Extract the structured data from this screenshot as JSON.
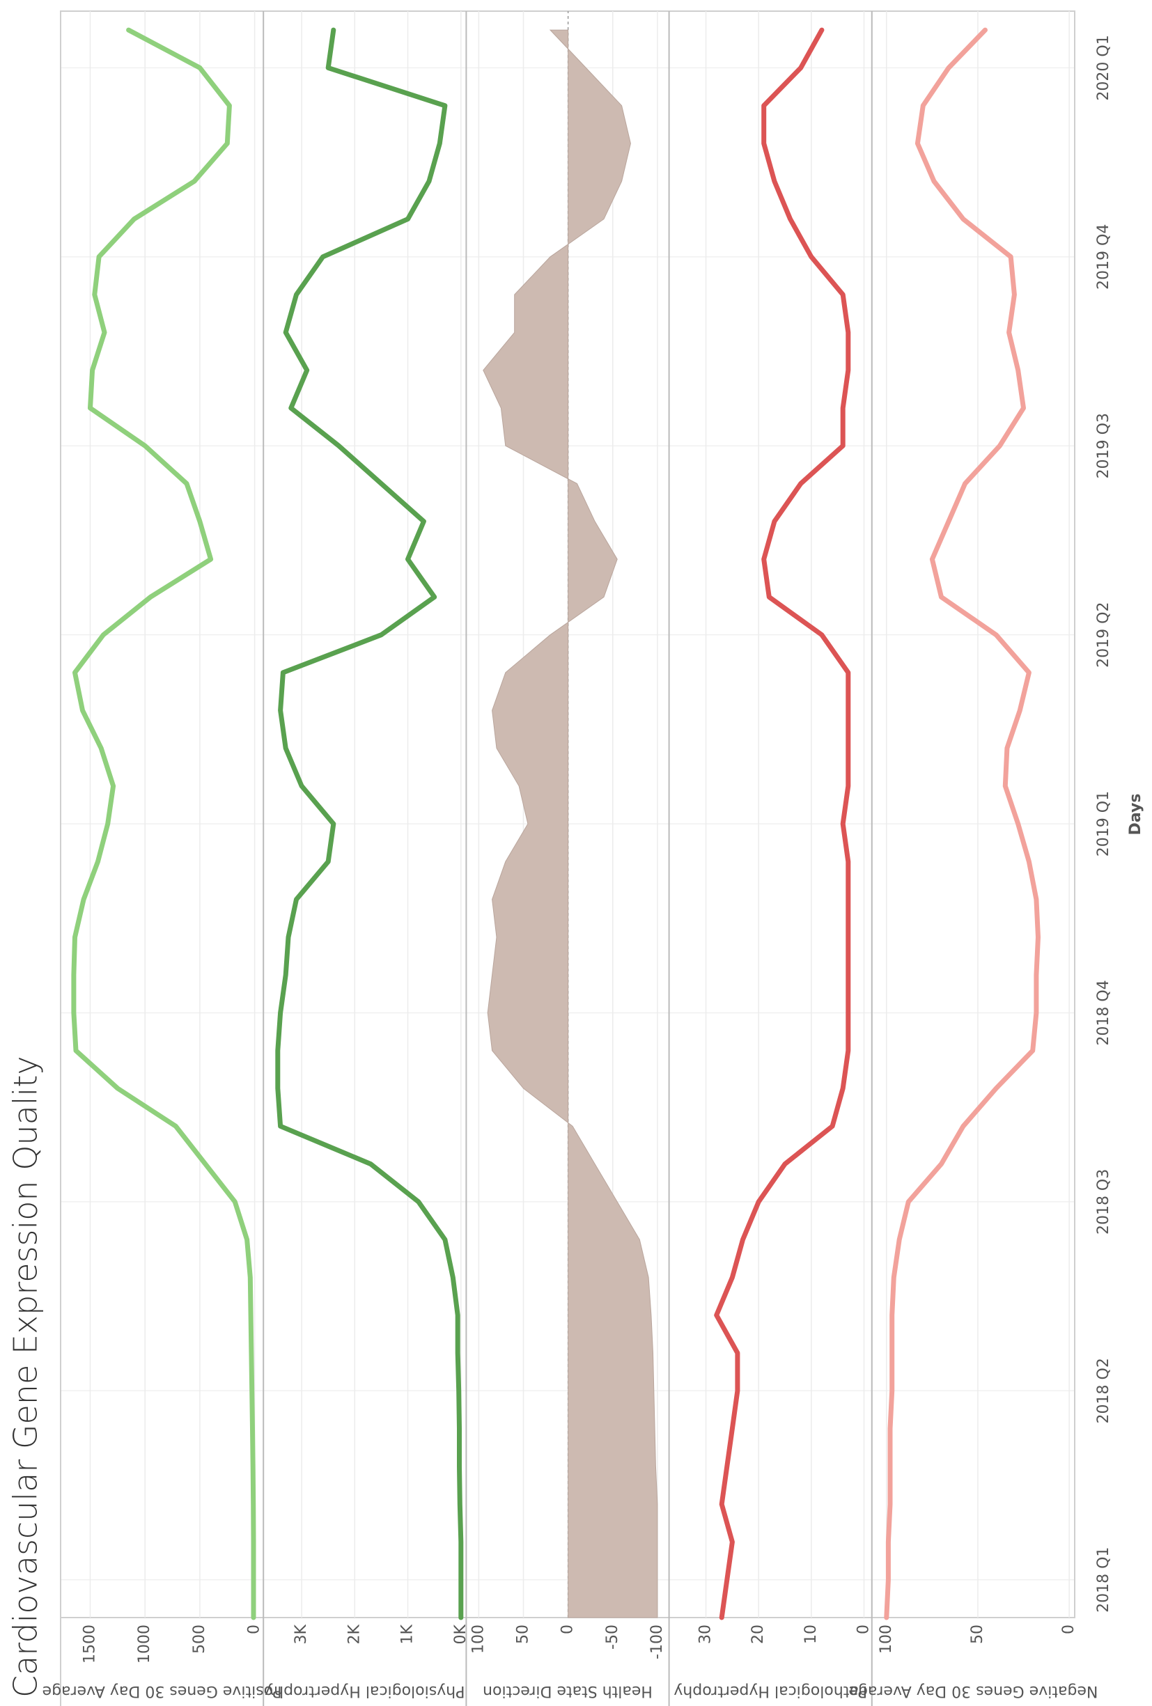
{
  "title": "Cardiovascular Gene Expression Quality",
  "chart_data": [
    {
      "type": "line",
      "ylabel": "Positive Genes 30 Day Average",
      "color": "#8fd07c",
      "x": [
        -0.2,
        0,
        0.2,
        0.4,
        0.6,
        0.8,
        1,
        1.2,
        1.4,
        1.6,
        1.8,
        2,
        2.2,
        2.4,
        2.6,
        2.8,
        3,
        3.2,
        3.4,
        3.6,
        3.8,
        4,
        4.2,
        4.4,
        4.6,
        4.8,
        5,
        5.2,
        5.4,
        5.6,
        5.8,
        6,
        6.2,
        6.4,
        6.6,
        6.8,
        7,
        7.2,
        7.4,
        7.6,
        7.8,
        8,
        8.2
      ],
      "values": [
        10,
        10,
        10,
        12,
        15,
        20,
        25,
        30,
        35,
        40,
        70,
        180,
        450,
        720,
        1250,
        1630,
        1650,
        1650,
        1640,
        1560,
        1430,
        1340,
        1290,
        1400,
        1570,
        1640,
        1380,
        950,
        400,
        500,
        620,
        1000,
        1500,
        1480,
        1370,
        1460,
        1420,
        1100,
        550,
        250,
        230,
        500,
        1150
      ],
      "xlim": [
        -0.2,
        8.3
      ],
      "ylim": [
        -80,
        1770
      ],
      "yticks": [
        0,
        500,
        1000,
        1500
      ]
    },
    {
      "type": "line",
      "ylabel": "Physiological Hypertrophy",
      "color": "#59a14f",
      "x": [
        -0.2,
        0,
        0.2,
        0.4,
        0.6,
        0.8,
        1,
        1.2,
        1.4,
        1.6,
        1.8,
        2,
        2.2,
        2.4,
        2.6,
        2.8,
        3,
        3.2,
        3.4,
        3.6,
        3.8,
        4,
        4.2,
        4.4,
        4.6,
        4.8,
        5,
        5.2,
        5.4,
        5.6,
        5.8,
        6,
        6.2,
        6.4,
        6.6,
        6.8,
        7,
        7.2,
        7.4,
        7.6,
        7.8,
        8,
        8.2
      ],
      "values": [
        0,
        0,
        0,
        20,
        30,
        30,
        40,
        60,
        60,
        150,
        300,
        800,
        1700,
        3400,
        3450,
        3450,
        3400,
        3300,
        3250,
        3100,
        2500,
        2400,
        3000,
        3300,
        3400,
        3350,
        1500,
        500,
        1000,
        700,
        1500,
        2300,
        3200,
        2900,
        3300,
        3100,
        2600,
        1000,
        600,
        400,
        300,
        2500,
        2400
      ],
      "xlim": [
        -0.2,
        8.3
      ],
      "ylim": [
        -100,
        3720
      ],
      "yticks": [
        {
          "value": 0,
          "label": "0K"
        },
        {
          "value": 1000,
          "label": "1K"
        },
        {
          "value": 2000,
          "label": "2K"
        },
        {
          "value": 3000,
          "label": "3K"
        }
      ]
    },
    {
      "type": "area",
      "ylabel": "Health State Direction",
      "color": "#cdbab1",
      "x": [
        -0.2,
        0,
        0.2,
        0.4,
        0.6,
        0.8,
        1,
        1.2,
        1.4,
        1.6,
        1.8,
        2,
        2.2,
        2.4,
        2.6,
        2.8,
        3,
        3.2,
        3.4,
        3.6,
        3.8,
        4,
        4.2,
        4.4,
        4.6,
        4.8,
        5,
        5.2,
        5.4,
        5.6,
        5.8,
        6,
        6.2,
        6.4,
        6.6,
        6.8,
        7,
        7.2,
        7.4,
        7.6,
        7.8,
        8,
        8.2
      ],
      "values": [
        -100,
        -100,
        -100,
        -100,
        -98,
        -97,
        -96,
        -95,
        -93,
        -90,
        -80,
        -55,
        -30,
        -5,
        50,
        85,
        90,
        85,
        80,
        85,
        70,
        45,
        55,
        80,
        85,
        70,
        20,
        -40,
        -55,
        -30,
        -10,
        70,
        75,
        95,
        60,
        60,
        20,
        -40,
        -60,
        -70,
        -60,
        -20,
        20
      ],
      "xlim": [
        -0.2,
        8.3
      ],
      "ylim": [
        -113,
        114
      ],
      "yticks": [
        100,
        50,
        0,
        -50,
        -100
      ]
    },
    {
      "type": "line",
      "ylabel": "Pathological Hypertrophy",
      "color": "#dc5454",
      "x": [
        -0.2,
        0,
        0.2,
        0.4,
        0.6,
        0.8,
        1,
        1.2,
        1.4,
        1.6,
        1.8,
        2,
        2.2,
        2.4,
        2.6,
        2.8,
        3,
        3.2,
        3.4,
        3.6,
        3.8,
        4,
        4.2,
        4.4,
        4.6,
        4.8,
        5,
        5.2,
        5.4,
        5.6,
        5.8,
        6,
        6.2,
        6.4,
        6.6,
        6.8,
        7,
        7.2,
        7.4,
        7.6,
        7.8,
        8,
        8.2
      ],
      "values": [
        27,
        26,
        25,
        27,
        26,
        25,
        24,
        24,
        28,
        25,
        23,
        20,
        15,
        6,
        4,
        3,
        3,
        3,
        3,
        3,
        3,
        4,
        3,
        3,
        3,
        3,
        8,
        18,
        19,
        17,
        12,
        4,
        4,
        3,
        3,
        4,
        10,
        14,
        17,
        19,
        19,
        12,
        8
      ],
      "xlim": [
        -0.2,
        8.3
      ],
      "ylim": [
        -1.5,
        37
      ],
      "yticks": [
        0,
        10,
        20,
        30
      ]
    },
    {
      "type": "line",
      "ylabel": "Negative Genes 30 Day Average",
      "color": "#f2a29b",
      "x": [
        -0.2,
        0,
        0.2,
        0.4,
        0.6,
        0.8,
        1,
        1.2,
        1.4,
        1.6,
        1.8,
        2,
        2.2,
        2.4,
        2.6,
        2.8,
        3,
        3.2,
        3.4,
        3.6,
        3.8,
        4,
        4.2,
        4.4,
        4.6,
        4.8,
        5,
        5.2,
        5.4,
        5.6,
        5.8,
        6,
        6.2,
        6.4,
        6.6,
        6.8,
        7,
        7.2,
        7.4,
        7.6,
        7.8,
        8,
        8.2
      ],
      "values": [
        100,
        99,
        99,
        98,
        98,
        98,
        97,
        97,
        97,
        96,
        93,
        88,
        70,
        58,
        40,
        20,
        18,
        18,
        17,
        18,
        22,
        28,
        35,
        34,
        27,
        22,
        40,
        70,
        75,
        66,
        57,
        38,
        25,
        28,
        33,
        30,
        32,
        58,
        74,
        83,
        80,
        66,
        46
      ],
      "xlim": [
        -0.2,
        8.3
      ],
      "ylim": [
        -3,
        108
      ],
      "yticks": [
        0,
        50,
        100
      ],
      "xlabel": "Days",
      "xticks": [
        {
          "value": 0,
          "label": "2018 Q1"
        },
        {
          "value": 1,
          "label": "2018 Q2"
        },
        {
          "value": 2,
          "label": "2018 Q3"
        },
        {
          "value": 3,
          "label": "2018 Q4"
        },
        {
          "value": 4,
          "label": "2019 Q1"
        },
        {
          "value": 5,
          "label": "2019 Q2"
        },
        {
          "value": 6,
          "label": "2019 Q3"
        },
        {
          "value": 7,
          "label": "2019 Q4"
        },
        {
          "value": 8,
          "label": "2020 Q1"
        }
      ]
    }
  ]
}
